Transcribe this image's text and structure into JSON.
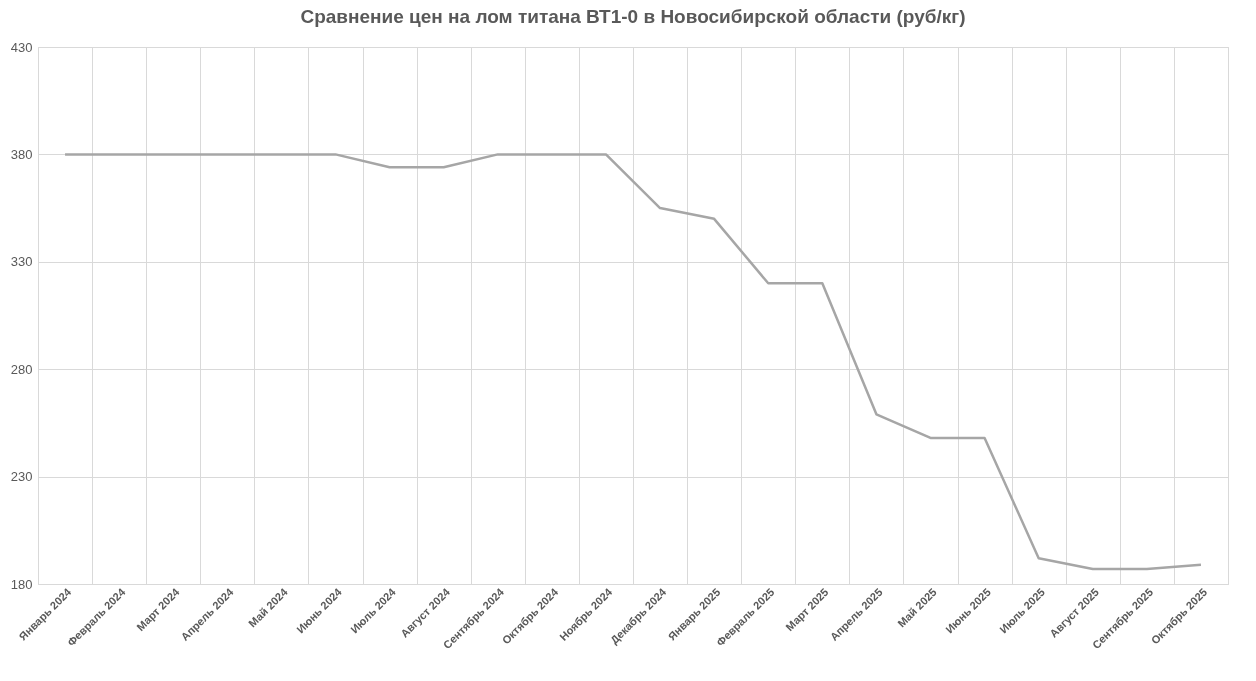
{
  "chart_data": {
    "type": "line",
    "title": "Сравнение цен на лом титана ВТ1-0 в Новосибирской области (руб/кг)",
    "categories": [
      "Январь 2024",
      "Февраль 2024",
      "Март 2024",
      "Апрель 2024",
      "Май 2024",
      "Июнь 2024",
      "Июль 2024",
      "Август 2024",
      "Сентябрь 2024",
      "Октябрь 2024",
      "Ноябрь 2024",
      "Декабрь 2024",
      "Январь 2025",
      "Февраль 2025",
      "Март 2025",
      "Апрель 2025",
      "Май 2025",
      "Июнь 2025",
      "Июль 2025",
      "Август 2025",
      "Сентябрь 2025",
      "Октябрь 2025"
    ],
    "series": [
      {
        "color": "#a6a6a6",
        "values": [
          380,
          380,
          380,
          380,
          380,
          380,
          374,
          374,
          380,
          380,
          380,
          355,
          350,
          320,
          320,
          259,
          248,
          248,
          192,
          187,
          187,
          189
        ]
      }
    ],
    "ylim": [
      180,
      430
    ],
    "yticks": [
      180,
      230,
      280,
      330,
      380,
      430
    ],
    "grid": true,
    "marker": "none",
    "line_style": "solid"
  }
}
